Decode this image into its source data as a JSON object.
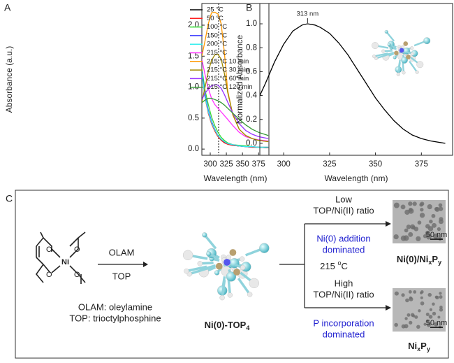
{
  "chart_data": [
    {
      "type": "line",
      "panel_label": "A",
      "x_label": "Wavelength (nm)",
      "y_label": "Absorbance (a.u.)",
      "x": [
        287,
        292,
        297,
        302,
        307,
        312,
        317,
        322,
        327,
        335,
        345,
        355,
        365,
        375,
        390
      ],
      "series": [
        {
          "name": "25 °C",
          "color": "#000000",
          "values": [
            1.25,
            0.85,
            0.6,
            0.42,
            0.3,
            0.21,
            0.15,
            0.11,
            0.08,
            0.06,
            0.05,
            0.04,
            0.03,
            0.03,
            0.02
          ]
        },
        {
          "name": "50 °C",
          "color": "#ff2020",
          "values": [
            1.22,
            0.83,
            0.58,
            0.41,
            0.29,
            0.2,
            0.14,
            0.1,
            0.08,
            0.06,
            0.05,
            0.04,
            0.03,
            0.03,
            0.02
          ]
        },
        {
          "name": "100 °C",
          "color": "#33dd33",
          "values": [
            1.3,
            0.95,
            0.72,
            0.52,
            0.38,
            0.27,
            0.19,
            0.14,
            0.1,
            0.07,
            0.06,
            0.05,
            0.04,
            0.03,
            0.03
          ]
        },
        {
          "name": "150 °C",
          "color": "#3333ff",
          "values": [
            1.25,
            0.88,
            0.63,
            0.45,
            0.32,
            0.22,
            0.16,
            0.12,
            0.09,
            0.07,
            0.05,
            0.04,
            0.04,
            0.03,
            0.03
          ]
        },
        {
          "name": "200 °C",
          "color": "#33eeee",
          "values": [
            1.22,
            0.84,
            0.6,
            0.43,
            0.31,
            0.22,
            0.16,
            0.12,
            0.09,
            0.07,
            0.05,
            0.04,
            0.04,
            0.03,
            0.03
          ]
        },
        {
          "name": "215 °C",
          "color": "#ff33ff",
          "values": [
            1.45,
            1.2,
            0.98,
            0.82,
            0.72,
            0.66,
            0.6,
            0.54,
            0.48,
            0.38,
            0.27,
            0.2,
            0.17,
            0.15,
            0.13
          ]
        },
        {
          "name": "215 °C 10 min",
          "color": "#ff9900",
          "values": [
            1.5,
            1.75,
            2.02,
            2.2,
            2.21,
            2.18,
            2.02,
            1.55,
            0.95,
            0.55,
            0.32,
            0.22,
            0.17,
            0.14,
            0.12
          ]
        },
        {
          "name": "215 °C 30 min",
          "color": "#a08a00",
          "values": [
            0.76,
            1.0,
            1.25,
            1.43,
            1.52,
            1.53,
            1.45,
            1.22,
            0.92,
            0.56,
            0.32,
            0.22,
            0.17,
            0.14,
            0.12
          ]
        },
        {
          "name": "215 °C 60 min",
          "color": "#9933ff",
          "values": [
            0.8,
            0.9,
            0.97,
            1.02,
            1.04,
            1.03,
            0.98,
            0.88,
            0.76,
            0.58,
            0.41,
            0.3,
            0.24,
            0.2,
            0.17
          ]
        },
        {
          "name": "215 °C 120 min",
          "color": "#339933",
          "values": [
            0.75,
            0.79,
            0.82,
            0.82,
            0.8,
            0.78,
            0.75,
            0.71,
            0.66,
            0.58,
            0.48,
            0.39,
            0.32,
            0.27,
            0.22
          ]
        }
      ],
      "vline": 313,
      "xlim": [
        287,
        391
      ],
      "xticks": [
        300,
        325,
        350,
        375
      ],
      "ylim": [
        -0.1,
        2.35
      ],
      "yticks": [
        {
          "value": 0,
          "label": "0.0"
        },
        0.5,
        {
          "value": 1,
          "label": "1.0"
        },
        1.5,
        {
          "value": 2,
          "label": "2.0"
        }
      ],
      "legend": "upper right"
    },
    {
      "type": "line",
      "panel_label": "B",
      "x_label": "Wavelength (nm)",
      "y_label": "Normalized Absorbance",
      "x": [
        287,
        290,
        295,
        300,
        305,
        310,
        313,
        317,
        320,
        325,
        330,
        335,
        340,
        345,
        350,
        355,
        360,
        365,
        370,
        375,
        380,
        388
      ],
      "series": [
        {
          "color": "#000000",
          "values": [
            0.4,
            0.5,
            0.68,
            0.83,
            0.94,
            0.99,
            1.0,
            0.99,
            0.97,
            0.92,
            0.84,
            0.74,
            0.62,
            0.5,
            0.38,
            0.28,
            0.19,
            0.12,
            0.07,
            0.04,
            0.02,
            0.0
          ]
        }
      ],
      "annotation": {
        "text": "313 nm",
        "x": 313,
        "y": 1.0
      },
      "xlim": [
        287,
        392
      ],
      "xticks": [
        300,
        325,
        350,
        375
      ],
      "ylim": [
        -0.1,
        1.17
      ],
      "yticks": [
        {
          "value": 0,
          "label": "0.0"
        },
        0.2,
        0.4,
        0.6,
        0.8,
        {
          "value": 1,
          "label": "1.0"
        }
      ]
    }
  ],
  "scheme": {
    "panel_label": "C",
    "reagent_labels": [
      "O",
      "O",
      "Ni",
      "O",
      "O"
    ],
    "arrow_top": "OLAM",
    "arrow_bottom": "TOP",
    "legend_lines": [
      "OLAM: oleylamine",
      "TOP: trioctylphosphine"
    ],
    "complex": [
      "Ni(0)-TOP",
      "4"
    ],
    "temperature": [
      "215 ",
      "o",
      "C"
    ],
    "upper": {
      "condition": [
        "Low",
        "TOP/Ni(II) ratio"
      ],
      "result": [
        "Ni(0) addition",
        "dominated"
      ],
      "product": [
        "Ni(0)/Ni",
        "x",
        "P",
        "y"
      ],
      "scale": "50 nm"
    },
    "lower": {
      "condition": [
        "High",
        "TOP/Ni(II) ratio"
      ],
      "result": [
        "P incorporation",
        "dominated"
      ],
      "product": [
        "Ni",
        "x",
        "P",
        "y"
      ],
      "scale": "50 nm"
    }
  }
}
